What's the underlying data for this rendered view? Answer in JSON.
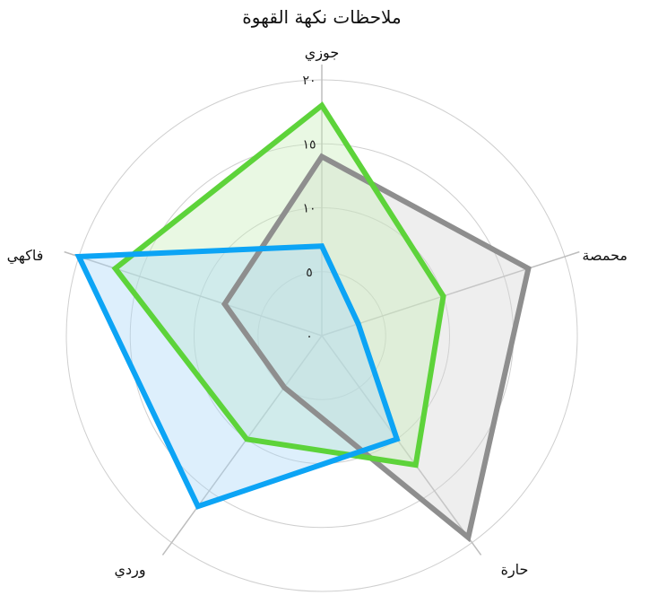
{
  "chart_data": {
    "type": "radar",
    "title": "ملاحظات نكهة القهوة",
    "axes": [
      "جوزي",
      "محمصة",
      "حارة",
      "وردي",
      "فاكهي"
    ],
    "rlim": [
      0,
      20
    ],
    "ticks": [
      0,
      5,
      10,
      15,
      20
    ],
    "tick_labels": [
      "٠",
      "٥",
      "١٠",
      "١٥",
      "٢٠"
    ],
    "grid": true,
    "series": [
      {
        "values": [
          14,
          17,
          19.5,
          5,
          8
        ],
        "color": "#8e8e8e",
        "fill": "#d4d4d4"
      },
      {
        "values": [
          18,
          10,
          12.5,
          10,
          17
        ],
        "color": "#5dd33a",
        "fill": "#c8eeb8"
      },
      {
        "values": [
          7,
          3,
          10,
          16.5,
          20
        ],
        "color": "#0ca4f5",
        "fill": "#a9d6f7"
      }
    ]
  }
}
